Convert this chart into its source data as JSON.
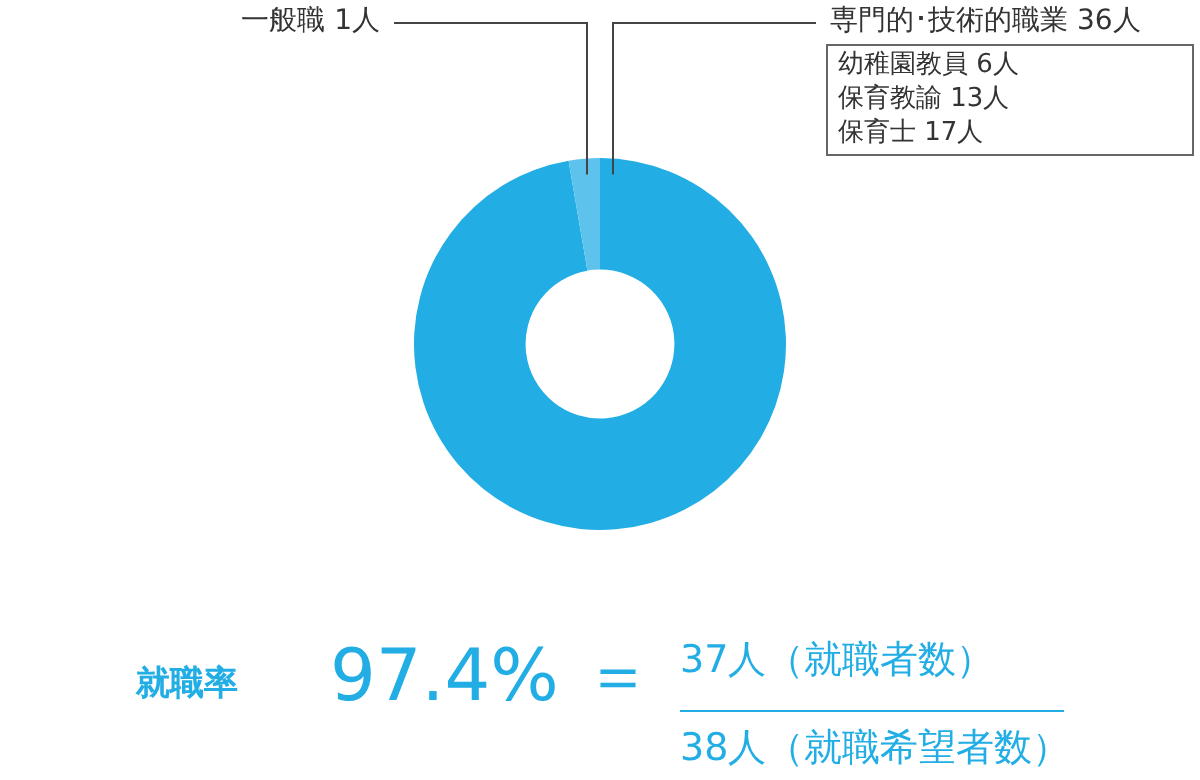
{
  "chart_data": {
    "type": "donut",
    "categories": [
      "専門的･技術的職業",
      "一般職"
    ],
    "values": [
      36,
      1
    ],
    "value_labels": [
      "36人",
      "1人"
    ],
    "colors": [
      "#22aee4",
      "#5dc3ec"
    ],
    "legend": false,
    "annotations": [
      "幼稚園教員 6人",
      "保育教諭 13人",
      "保育士 17人",
      "就職率",
      "97.4%",
      "＝",
      "37人（就職者数）",
      "38人（就職希望者数）"
    ]
  }
}
